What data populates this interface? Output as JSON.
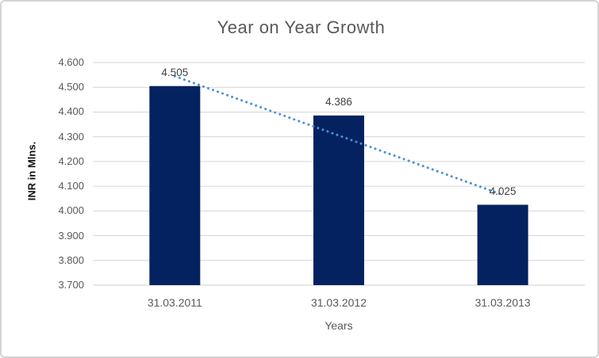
{
  "chart_data": {
    "type": "bar",
    "title": "Year on Year Growth",
    "xlabel": "Years",
    "ylabel": "INR in Mlns.",
    "categories": [
      "31.03.2011",
      "31.03.2012",
      "31.03.2013"
    ],
    "values": [
      4.505,
      4.386,
      4.025
    ],
    "data_labels": [
      "4.505",
      "4.386",
      "4.025"
    ],
    "yticks": [
      "3.700",
      "3.800",
      "3.900",
      "4.000",
      "4.100",
      "4.200",
      "4.300",
      "4.400",
      "4.500",
      "4.600"
    ],
    "ylim": [
      3.7,
      4.6
    ],
    "grid": true,
    "legend": "none",
    "trendline": {
      "type": "linear",
      "style": "dotted",
      "start_value": 4.545,
      "end_value": 4.065
    },
    "colors": {
      "bar": "#04225F",
      "trendline": "#4E8FD6",
      "gridline": "#D6D6D6",
      "axis_line": "#CCCCCC",
      "tick_label": "#595959",
      "data_label": "#404040",
      "title": "#595959",
      "border": "#D4D4D4"
    }
  }
}
